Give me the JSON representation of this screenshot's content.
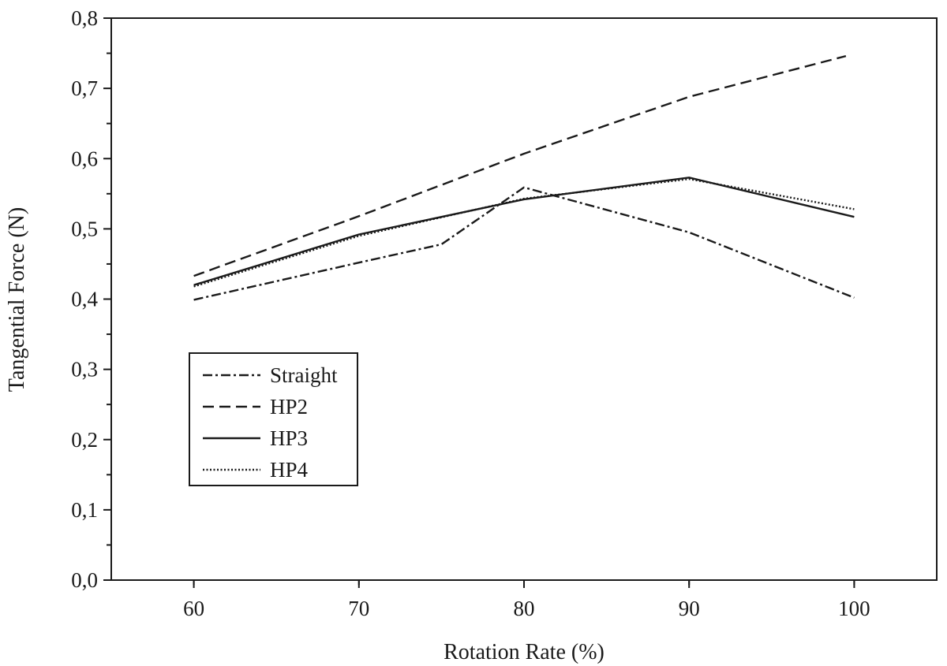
{
  "chart_data": {
    "type": "line",
    "title": "",
    "xlabel": "Rotation Rate (%)",
    "ylabel": "Tangential Force (N)",
    "xlim": [
      55,
      105
    ],
    "ylim": [
      0,
      0.8
    ],
    "grid": false,
    "legend_position": "lower-left",
    "x_ticks": [
      60,
      70,
      80,
      90,
      100
    ],
    "x_tick_labels": [
      "60",
      "70",
      "80",
      "90",
      "100"
    ],
    "y_ticks": [
      0,
      0.1,
      0.2,
      0.3,
      0.4,
      0.5,
      0.6,
      0.7,
      0.8
    ],
    "y_tick_labels": [
      "0,0",
      "0,1",
      "0,2",
      "0,3",
      "0,4",
      "0,5",
      "0,6",
      "0,7",
      "0,8"
    ],
    "series": [
      {
        "name": "Straight",
        "style": "dash-dot",
        "color": "#1a1a1a",
        "points": [
          [
            60,
            0.399
          ],
          [
            70,
            0.452
          ],
          [
            75,
            0.478
          ],
          [
            80,
            0.559
          ],
          [
            90,
            0.495
          ],
          [
            100,
            0.402
          ]
        ]
      },
      {
        "name": "HP2",
        "style": "dashed",
        "color": "#1a1a1a",
        "points": [
          [
            60,
            0.433
          ],
          [
            70,
            0.518
          ],
          [
            80,
            0.607
          ],
          [
            90,
            0.688
          ],
          [
            99.5,
            0.746
          ]
        ]
      },
      {
        "name": "HP3",
        "style": "solid",
        "color": "#1a1a1a",
        "points": [
          [
            60,
            0.42
          ],
          [
            70,
            0.492
          ],
          [
            80,
            0.542
          ],
          [
            90,
            0.573
          ],
          [
            100,
            0.517
          ]
        ]
      },
      {
        "name": "HP4",
        "style": "dotted",
        "color": "#1a1a1a",
        "points": [
          [
            60,
            0.418
          ],
          [
            70,
            0.49
          ],
          [
            80,
            0.543
          ],
          [
            90,
            0.571
          ],
          [
            100,
            0.528
          ]
        ]
      }
    ]
  }
}
